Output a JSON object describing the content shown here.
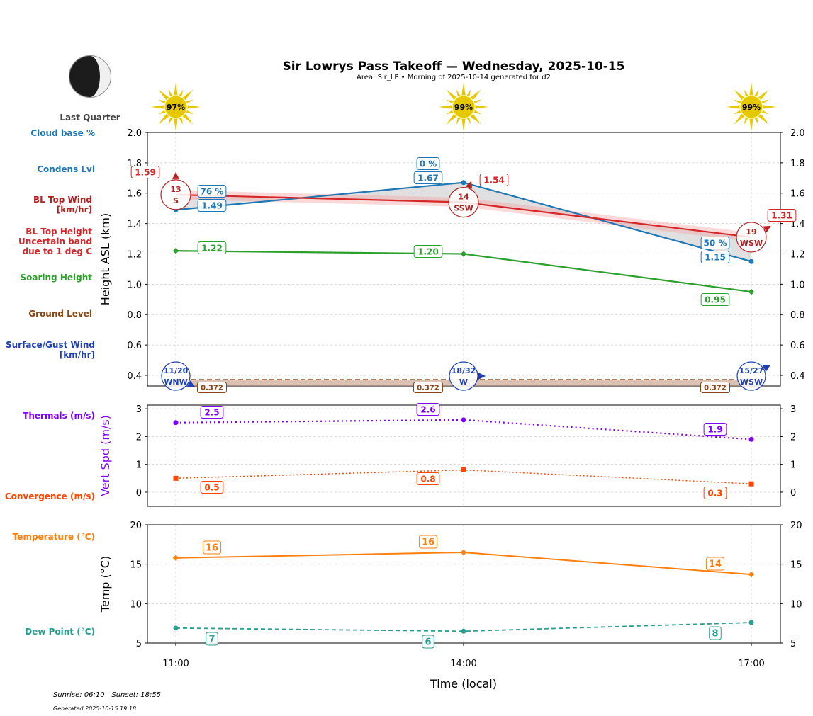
{
  "title": "Sir Lowrys Pass Takeoff — Wednesday, 2025-10-15",
  "subtitle": "Area: Sir_LP • Morning of 2025-10-14 generated for d2",
  "moon_phase": "Last Quarter",
  "footer": {
    "sun_times": "Sunrise: 06:10 | Sunset: 18:55",
    "generated": "Generated 2025-10-15 19:18"
  },
  "sun_percent": [
    "97%",
    "99%",
    "99%"
  ],
  "left_labels": [
    {
      "text": "Cloud base %",
      "color": "#1f77b4"
    },
    {
      "text": "Condens Lvl",
      "color": "#1f77b4"
    },
    {
      "text": "BL Top Wind\n[km/hr]",
      "color": "#b22222"
    },
    {
      "text": "BL Top Height\nUncertain band\ndue to 1 deg C",
      "color": "#d62728"
    },
    {
      "text": "Soaring Height",
      "color": "#2ca02c"
    },
    {
      "text": "Ground Level",
      "color": "#8b4513"
    },
    {
      "text": "Surface/Gust Wind\n[km/hr]",
      "color": "#1f3fb4"
    },
    {
      "text": "Thermals (m/s)",
      "color": "#8000ff"
    },
    {
      "text": "Convergence (m/s)",
      "color": "#ff4500"
    },
    {
      "text": "Temperature (°C)",
      "color": "#ff7f0e"
    },
    {
      "text": "Dew Point (°C)",
      "color": "#2a9d8f"
    }
  ],
  "chart_data": [
    {
      "type": "line",
      "ylabel": "Height ASL (km)",
      "x": [
        "11:00",
        "14:00",
        "17:00"
      ],
      "ylim": [
        0.33,
        2.0
      ],
      "yticks": [
        "0.4",
        "0.6",
        "0.8",
        "1.0",
        "1.2",
        "1.4",
        "1.6",
        "1.8",
        "2.0"
      ],
      "grid": true,
      "series": [
        {
          "name": "BL Top Height",
          "values": [
            1.59,
            1.54,
            1.31
          ],
          "labels": [
            "1.59",
            "1.54",
            "1.31"
          ],
          "color": "#d62728",
          "band": 0.03
        },
        {
          "name": "Condens Lvl",
          "values": [
            1.49,
            1.67,
            1.15
          ],
          "labels": [
            "1.49",
            "1.67",
            "1.15"
          ],
          "color": "#1f77b4"
        },
        {
          "name": "Cloud base %",
          "labels": [
            "76 %",
            "0 %",
            "50 %"
          ],
          "color": "#1f77b4"
        },
        {
          "name": "Soaring Height",
          "values": [
            1.22,
            1.2,
            0.95
          ],
          "labels": [
            "1.22",
            "1.20",
            "0.95"
          ],
          "color": "#2ca02c"
        },
        {
          "name": "Ground Level",
          "values": [
            0.372,
            0.372,
            0.372
          ],
          "labels": [
            "0.372",
            "0.372",
            "0.372"
          ],
          "color": "#8b4513"
        }
      ],
      "bl_wind": [
        {
          "speed": "13",
          "dir": "S"
        },
        {
          "speed": "14",
          "dir": "SSW"
        },
        {
          "speed": "19",
          "dir": "WSW"
        }
      ],
      "surface_wind": [
        {
          "speed": "11/20",
          "dir": "WNW"
        },
        {
          "speed": "18/32",
          "dir": "W"
        },
        {
          "speed": "15/27",
          "dir": "WSW"
        }
      ]
    },
    {
      "type": "line",
      "ylabel": "Vert Spd (m/s)",
      "x": [
        "11:00",
        "14:00",
        "17:00"
      ],
      "ylim": [
        -0.5,
        3.13
      ],
      "yticks": [
        "0",
        "1",
        "2",
        "3"
      ],
      "grid": true,
      "series": [
        {
          "name": "Thermals (m/s)",
          "values": [
            2.5,
            2.6,
            1.9
          ],
          "labels": [
            "2.5",
            "2.6",
            "1.9"
          ],
          "color": "#8000ff"
        },
        {
          "name": "Convergence (m/s)",
          "values": [
            0.5,
            0.8,
            0.3
          ],
          "labels": [
            "0.5",
            "0.8",
            "0.3"
          ],
          "color": "#ff4500"
        }
      ]
    },
    {
      "type": "line",
      "ylabel": "Temp (°C)",
      "xlabel": "Time (local)",
      "x": [
        "11:00",
        "14:00",
        "17:00"
      ],
      "ylim": [
        5,
        20
      ],
      "yticks": [
        "5",
        "10",
        "15",
        "20"
      ],
      "grid": true,
      "series": [
        {
          "name": "Temperature (°C)",
          "values": [
            15.8,
            16.5,
            13.7
          ],
          "labels": [
            "16",
            "16",
            "14"
          ],
          "color": "#ff7f0e"
        },
        {
          "name": "Dew Point (°C)",
          "values": [
            6.9,
            6.5,
            7.6
          ],
          "labels": [
            "7",
            "6",
            "8"
          ],
          "color": "#2a9d8f"
        }
      ]
    }
  ]
}
